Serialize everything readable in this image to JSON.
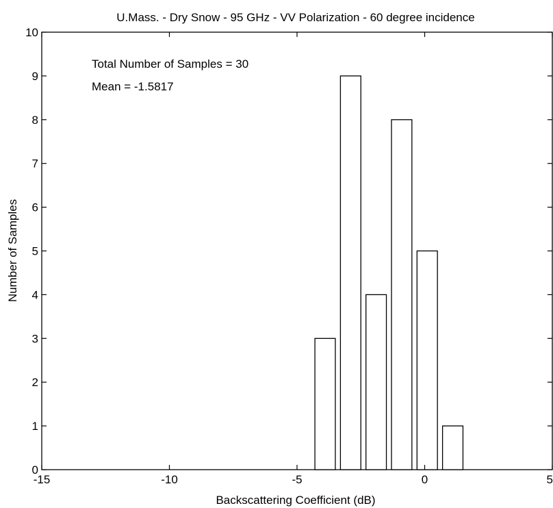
{
  "chart_data": {
    "type": "bar",
    "title": "U.Mass. - Dry Snow - 95 GHz - VV Polarization - 60 degree incidence",
    "xlabel": "Backscattering Coefficient (dB)",
    "ylabel": "Number of Samples",
    "xlim": [
      -15,
      5
    ],
    "ylim": [
      0,
      10
    ],
    "xticks": [
      -15,
      -10,
      -5,
      0,
      5
    ],
    "yticks": [
      0,
      1,
      2,
      3,
      4,
      5,
      6,
      7,
      8,
      9,
      10
    ],
    "grid": false,
    "bar_width": 0.8,
    "bars": [
      {
        "x": -3.9,
        "value": 3
      },
      {
        "x": -2.9,
        "value": 9
      },
      {
        "x": -1.9,
        "value": 4
      },
      {
        "x": -0.9,
        "value": 8
      },
      {
        "x": 0.1,
        "value": 5
      },
      {
        "x": 1.1,
        "value": 1
      }
    ],
    "annotations": [
      "Total Number of Samples = 30",
      "Mean = -1.5817"
    ]
  }
}
